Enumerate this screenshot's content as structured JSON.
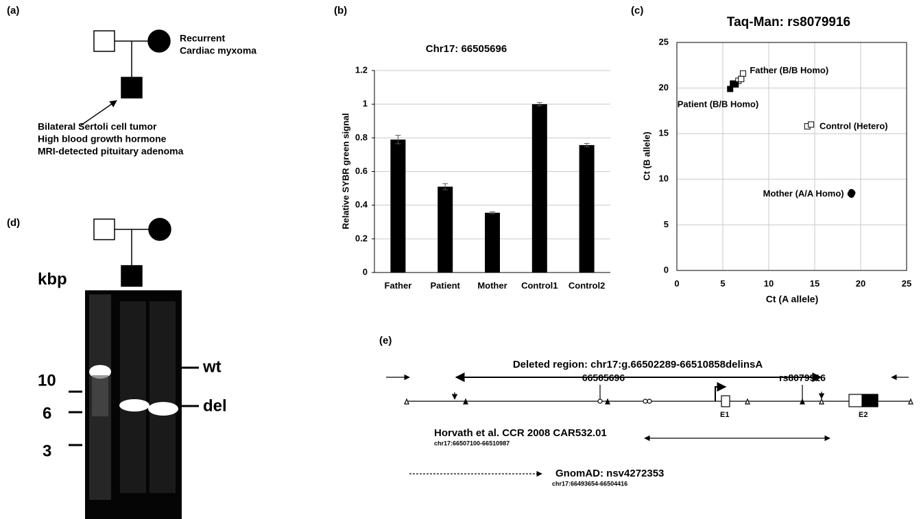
{
  "panels": {
    "a": {
      "label": "(a)",
      "mother_note": [
        "Recurrent",
        "Cardiac myxoma"
      ],
      "patient_note": [
        "Bilateral Sertoli cell tumor",
        "High blood growth hormone",
        "MRI-detected pituitary adenoma"
      ]
    },
    "d": {
      "label": "(d)",
      "unit": "kbp",
      "ladder": [
        "10",
        "6",
        "3"
      ],
      "bands": [
        "wt",
        "del"
      ]
    },
    "e": {
      "label": "(e)",
      "deleted_region": "Deleted region: chr17:g.66502289-66510858delinsA",
      "site_1": "66505696",
      "site_2": "rs8079916",
      "exon_1": "E1",
      "exon_2": "E2",
      "horvath": "Horvath et al. CCR 2008 CAR532.01",
      "horvath_coords": "chr17:66507100-66510987",
      "gnomad": "GnomAD: nsv4272353",
      "gnomad_coords": "chr17:66493654-66504416"
    }
  },
  "chart_data": [
    {
      "type": "bar",
      "panel_label": "(b)",
      "title": "Chr17: 66505696",
      "ylabel": "Relative SYBR green signal",
      "categories": [
        "Father",
        "Patient",
        "Mother",
        "Control1",
        "Control2"
      ],
      "values": [
        0.79,
        0.51,
        0.355,
        1.0,
        0.757
      ],
      "errors": [
        0.025,
        0.018,
        0.005,
        0.01,
        0.01
      ],
      "color": "#000000",
      "ylim": [
        0,
        1.2
      ],
      "yticks": [
        0,
        0.2,
        0.4,
        0.6,
        0.8,
        1,
        1.2
      ],
      "grid": true
    },
    {
      "type": "scatter",
      "panel_label": "(c)",
      "title": "Taq-Man: rs8079916",
      "xlabel": "Ct (A allele)",
      "ylabel": "Ct (B allele)",
      "xlim": [
        0,
        25
      ],
      "ylim": [
        0,
        25
      ],
      "xticks": [
        0,
        5,
        10,
        15,
        20,
        25
      ],
      "yticks": [
        0,
        5,
        10,
        15,
        20,
        25
      ],
      "grid": true,
      "series": [
        {
          "name": "Father (B/B Homo)",
          "color": "#000000",
          "marker": "square",
          "filled": false,
          "x": [
            6.7,
            7.0,
            7.2
          ],
          "y": [
            20.8,
            21.0,
            21.6
          ]
        },
        {
          "name": "Patient (B/B Homo)",
          "color": "#000000",
          "marker": "square",
          "filled": true,
          "x": [
            5.8,
            6.1,
            6.4
          ],
          "y": [
            19.9,
            20.5,
            20.4
          ]
        },
        {
          "name": "Control (Hetero)",
          "color": "#000000",
          "marker": "square",
          "filled": false,
          "x": [
            14.2,
            14.6
          ],
          "y": [
            15.8,
            16.0
          ]
        },
        {
          "name": "Mother (A/A Homo)",
          "color": "#000000",
          "marker": "circle",
          "filled": true,
          "x": [
            18.9,
            19.0,
            19.1,
            19.0
          ],
          "y": [
            8.4,
            8.6,
            8.5,
            8.3
          ]
        }
      ]
    }
  ]
}
